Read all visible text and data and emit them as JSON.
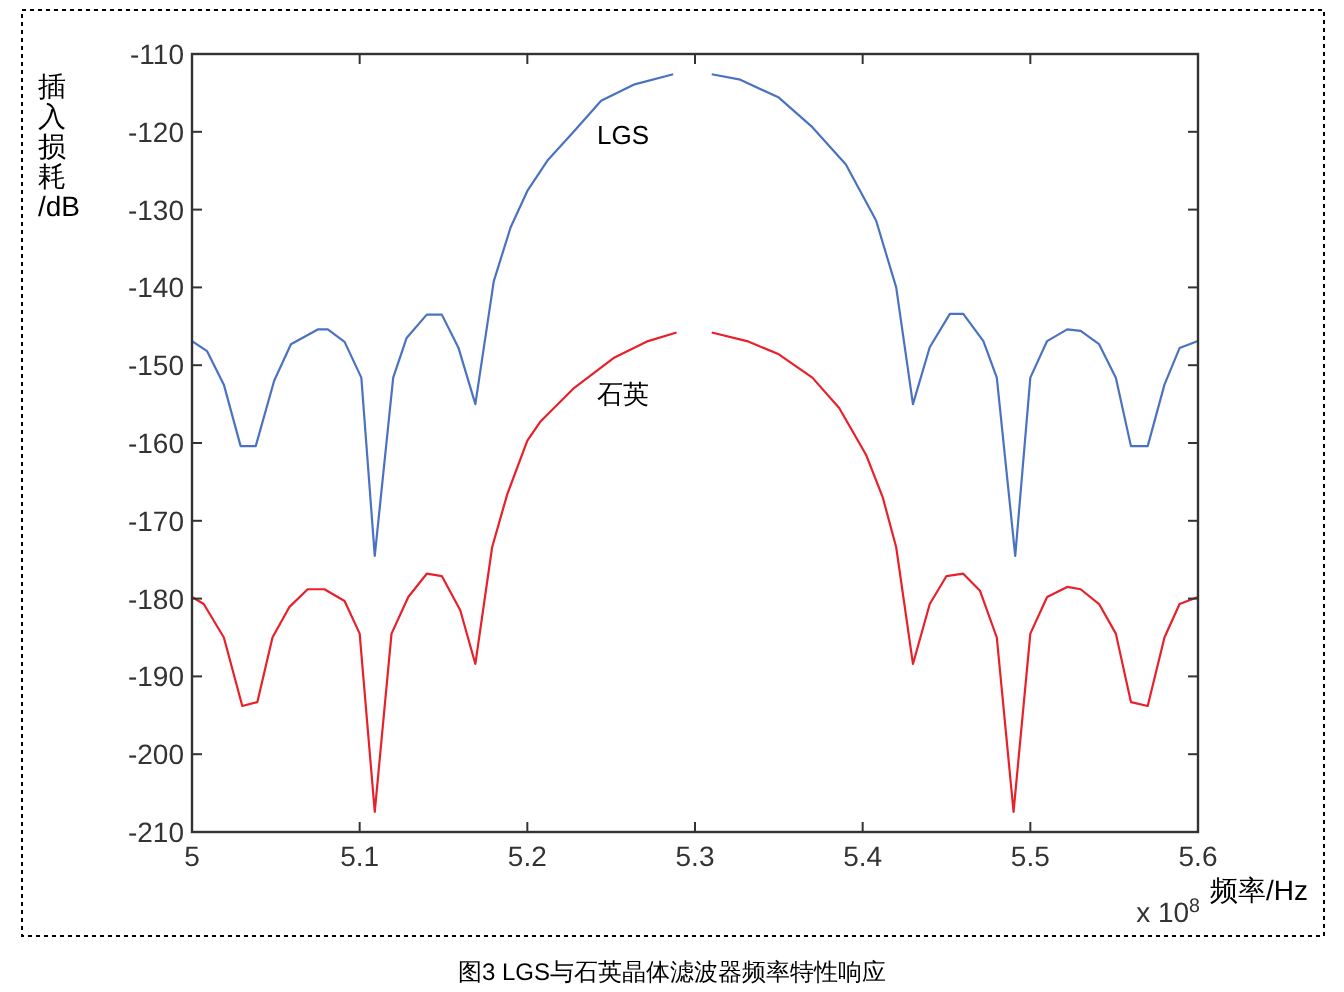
{
  "chart_data": {
    "type": "line",
    "title": "图3 LGS与石英晶体滤波器频率特性响应",
    "xlabel": "频率/Hz",
    "ylabel": "插入损耗/dB",
    "annotations": [
      "x 10$^{8}$"
    ],
    "xlim": [
      5,
      5.6
    ],
    "xticks": [
      5,
      5.1,
      5.2,
      5.3,
      5.4,
      5.5,
      5.6
    ],
    "ylim": [
      -210,
      -110
    ],
    "yticks": [
      -210,
      -200,
      -190,
      -180,
      -170,
      -160,
      -150,
      -140,
      -130,
      -120,
      -110
    ],
    "grid": false,
    "marker": "none",
    "line_style": "solid",
    "series": [
      {
        "name": "LGS",
        "color": "#4a72c0",
        "x": [
          5.0,
          5.009,
          5.019,
          5.029,
          5.038,
          5.049,
          5.059,
          5.075,
          5.081,
          5.091,
          5.101,
          5.109,
          5.12,
          5.128,
          5.14,
          5.149,
          5.159,
          5.169,
          5.18,
          5.19,
          5.2,
          5.212,
          5.228,
          5.244,
          5.264,
          5.287,
          5.3,
          5.31,
          5.327,
          5.35,
          5.37,
          5.39,
          5.408,
          5.42,
          5.43,
          5.44,
          5.452,
          5.46,
          5.472,
          5.48,
          5.491,
          5.5,
          5.51,
          5.522,
          5.53,
          5.541,
          5.551,
          5.56,
          5.57,
          5.58,
          5.589,
          5.6
        ],
        "values": [
          -146.9,
          -148.2,
          -152.5,
          -160.4,
          -160.4,
          -152,
          -147.3,
          -145.4,
          -145.4,
          -147,
          -151.6,
          -174.5,
          -151.6,
          -146.5,
          -143.5,
          -143.5,
          -147.8,
          -155,
          -139.2,
          -132.3,
          -127.6,
          -123.7,
          -119.9,
          -116,
          -113.9,
          -112.6,
          null,
          -112.6,
          -113.3,
          -115.6,
          -119.4,
          -124.2,
          -131.4,
          -140,
          -155,
          -147.7,
          -143.4,
          -143.4,
          -146.9,
          -151.6,
          -174.5,
          -151.6,
          -146.9,
          -145.4,
          -145.6,
          -147.3,
          -151.6,
          -160.4,
          -160.4,
          -152.5,
          -147.8,
          -146.9
        ]
      },
      {
        "name": "石英",
        "color": "#e8202a",
        "x": [
          5.0,
          5.007,
          5.019,
          5.03,
          5.039,
          5.048,
          5.058,
          5.069,
          5.079,
          5.091,
          5.1,
          5.109,
          5.119,
          5.129,
          5.14,
          5.149,
          5.16,
          5.169,
          5.179,
          5.188,
          5.2,
          5.208,
          5.228,
          5.252,
          5.272,
          5.289,
          5.3,
          5.31,
          5.331,
          5.35,
          5.37,
          5.386,
          5.402,
          5.412,
          5.42,
          5.43,
          5.44,
          5.45,
          5.46,
          5.47,
          5.48,
          5.49,
          5.5,
          5.51,
          5.522,
          5.53,
          5.541,
          5.551,
          5.56,
          5.57,
          5.58,
          5.589,
          5.6
        ],
        "values": [
          -179.8,
          -180.7,
          -185,
          -193.8,
          -193.3,
          -185,
          -181.1,
          -178.8,
          -178.8,
          -180.3,
          -184.5,
          -207.4,
          -184.5,
          -179.8,
          -176.8,
          -177.1,
          -181.5,
          -188.4,
          -173.4,
          -166.6,
          -159.7,
          -157.2,
          -152.9,
          -149,
          -146.9,
          -145.8,
          null,
          -145.8,
          -146.9,
          -148.6,
          -151.6,
          -155.5,
          -161.5,
          -167,
          -173.4,
          -188.4,
          -180.7,
          -177.1,
          -176.8,
          -179,
          -185,
          -207.4,
          -184.5,
          -179.8,
          -178.5,
          -178.8,
          -180.7,
          -184.5,
          -193.3,
          -193.8,
          -185,
          -180.7,
          -179.8
        ]
      }
    ]
  }
}
